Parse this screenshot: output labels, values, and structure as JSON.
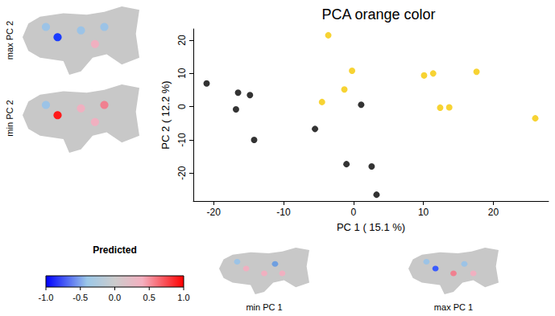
{
  "chart_data": {
    "type": "scatter",
    "title": "PCA orange color",
    "x_label": "PC 1 ( 15.1 %)",
    "y_label": "PC 2 ( 12.2 %)",
    "xlim": [
      -22.9,
      27.9
    ],
    "xticks": [
      -20,
      -10,
      0,
      10,
      20
    ],
    "ylim": [
      -28.4,
      23.4
    ],
    "yticks": [
      -20,
      -10,
      0,
      10,
      20
    ],
    "grid": false,
    "marker": "circle",
    "series": [
      {
        "color": "#000000",
        "x": [
          -21,
          -16.5,
          -16.8,
          -14.8,
          -14.2,
          -5.5,
          1.1,
          -1,
          2.6,
          3.3
        ],
        "y": [
          7,
          4.2,
          -0.8,
          3.5,
          -10,
          -6.7,
          0.6,
          -17.3,
          -18,
          -26.5
        ]
      },
      {
        "color": "#f5c800",
        "x": [
          -3.6,
          -0.2,
          -1.3,
          -4.5,
          10.1,
          11.4,
          17.6,
          12.4,
          13.7,
          26
        ],
        "y": [
          21.5,
          10.8,
          5.2,
          1.4,
          9.4,
          10,
          10.5,
          -0.3,
          -0.2,
          -3.5
        ]
      }
    ],
    "panels": [
      "max PC 2",
      "min PC 2",
      "min PC 1",
      "max PC 1"
    ],
    "colorbar": {
      "title": "Predicted",
      "range": [
        -1,
        1
      ],
      "ticks": [
        {
          "value": -1,
          "label": "-1.0"
        },
        {
          "value": -0.5,
          "label": "-0.5"
        },
        {
          "value": 0,
          "label": "0.0"
        },
        {
          "value": 0.5,
          "label": "0.5"
        },
        {
          "value": 1,
          "label": "1.0"
        }
      ]
    }
  }
}
